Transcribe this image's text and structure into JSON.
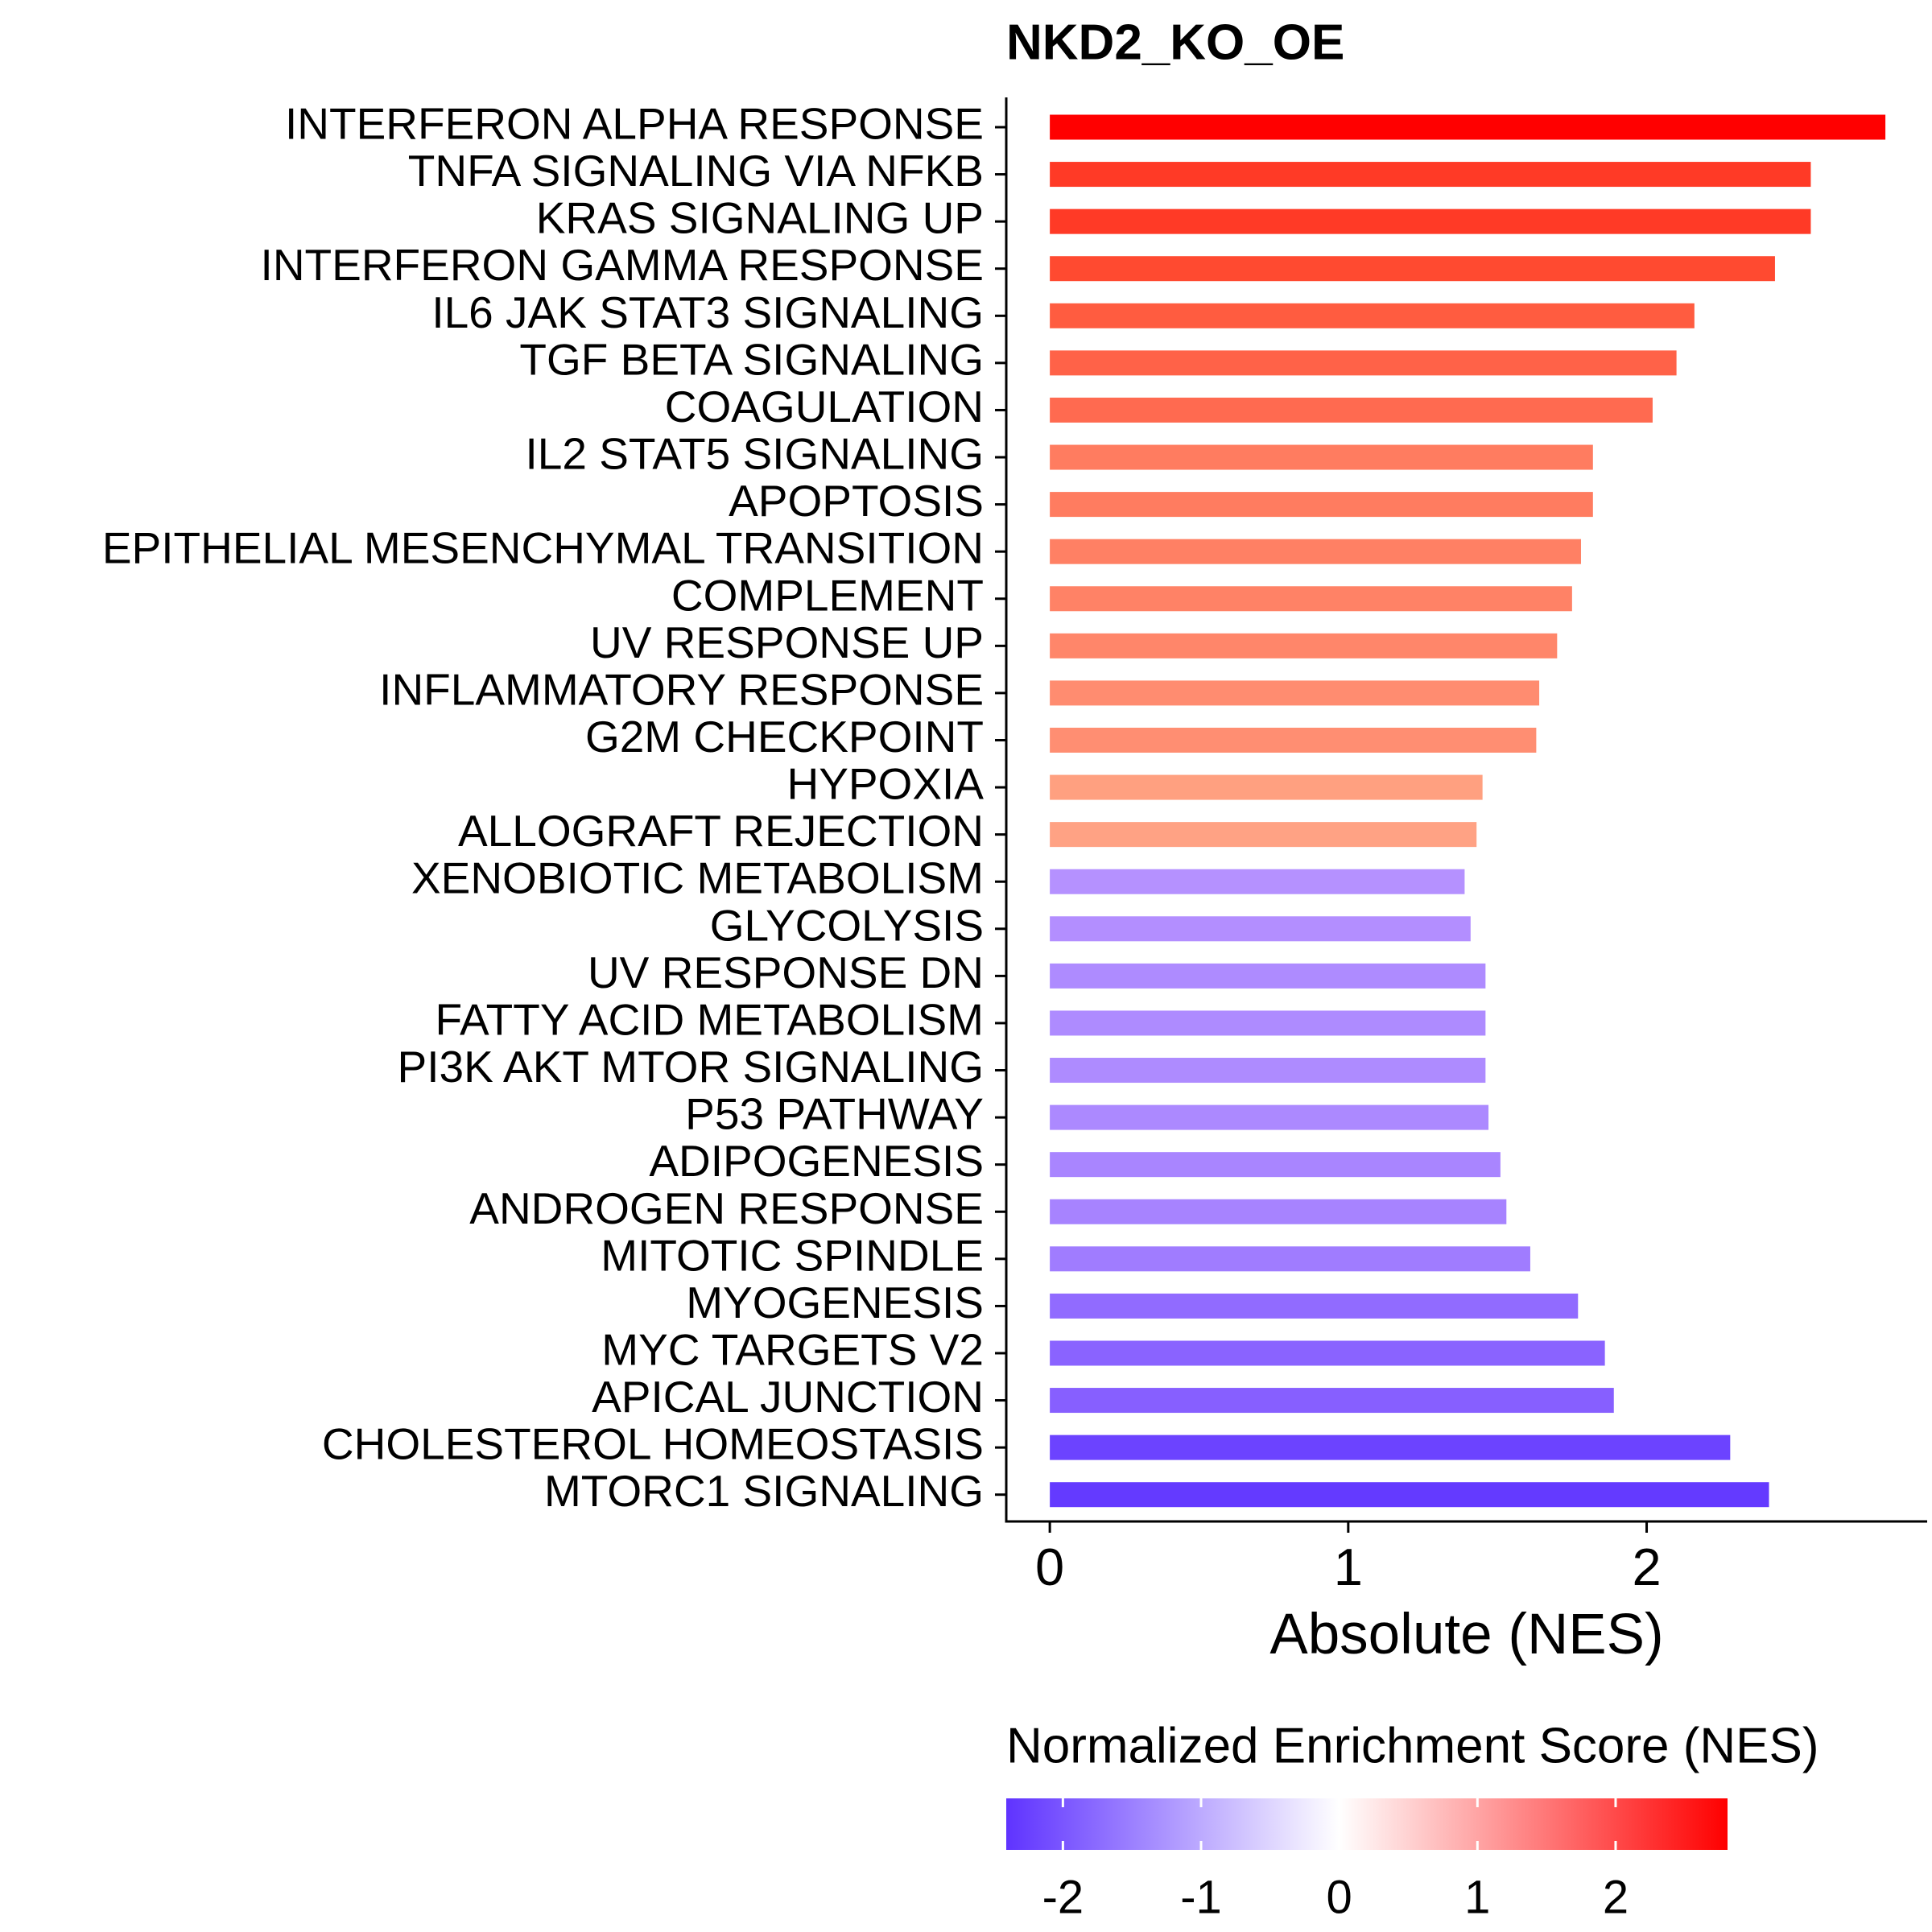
{
  "chart_data": {
    "type": "bar",
    "orientation": "horizontal",
    "title": "NKD2_KO_OE",
    "x_label": "Absolute (NES)",
    "categories": [
      "INTERFERON ALPHA RESPONSE",
      "TNFA SIGNALING VIA NFKB",
      "KRAS SIGNALING UP",
      "INTERFERON GAMMA RESPONSE",
      "IL6 JAK STAT3 SIGNALING",
      "TGF BETA SIGNALING",
      "COAGULATION",
      "IL2 STAT5 SIGNALING",
      "APOPTOSIS",
      "EPITHELIAL MESENCHYMAL TRANSITION",
      "COMPLEMENT",
      "UV RESPONSE UP",
      "INFLAMMATORY RESPONSE",
      "G2M CHECKPOINT",
      "HYPOXIA",
      "ALLOGRAFT REJECTION",
      "XENOBIOTIC METABOLISM",
      "GLYCOLYSIS",
      "UV RESPONSE DN",
      "FATTY ACID METABOLISM",
      "PI3K AKT MTOR SIGNALING",
      "P53 PATHWAY",
      "ADIPOGENESIS",
      "ANDROGEN RESPONSE",
      "MITOTIC SPINDLE",
      "MYOGENESIS",
      "MYC TARGETS V2",
      "APICAL JUNCTION",
      "CHOLESTEROL HOMEOSTASIS",
      "MTORC1 SIGNALING"
    ],
    "values": [
      2.8,
      2.55,
      2.55,
      2.43,
      2.16,
      2.1,
      2.02,
      1.82,
      1.82,
      1.78,
      1.75,
      1.7,
      1.64,
      1.63,
      1.45,
      1.43,
      1.39,
      1.41,
      1.46,
      1.46,
      1.46,
      1.47,
      1.51,
      1.53,
      1.61,
      1.77,
      1.86,
      1.89,
      2.28,
      2.41
    ],
    "colors": [
      "#ff0000",
      "#ff3a26",
      "#ff3a26",
      "#ff4a30",
      "#ff5c40",
      "#ff6248",
      "#ff6a50",
      "#ff7c60",
      "#ff7c60",
      "#ff8064",
      "#ff8266",
      "#ff866a",
      "#ff8c70",
      "#ff8e72",
      "#ffa080",
      "#ffa284",
      "#b591ff",
      "#b38eff",
      "#ae8bff",
      "#ae8bff",
      "#ae8bff",
      "#ac89ff",
      "#a985ff",
      "#a783ff",
      "#a07cff",
      "#916bff",
      "#8a63ff",
      "#875fff",
      "#6c43ff",
      "#643aff"
    ],
    "xlim": [
      -0.146,
      2.94
    ],
    "xticks": [
      0,
      1,
      2
    ],
    "colorbar": {
      "title": "Normalized Enrichment Score (NES)",
      "lim": [
        -2.41,
        2.81
      ],
      "ticks": [
        -2,
        -1,
        0,
        1,
        2
      ],
      "colors": [
        "#5f33ff",
        "#ffffff",
        "#ff0000"
      ]
    }
  }
}
